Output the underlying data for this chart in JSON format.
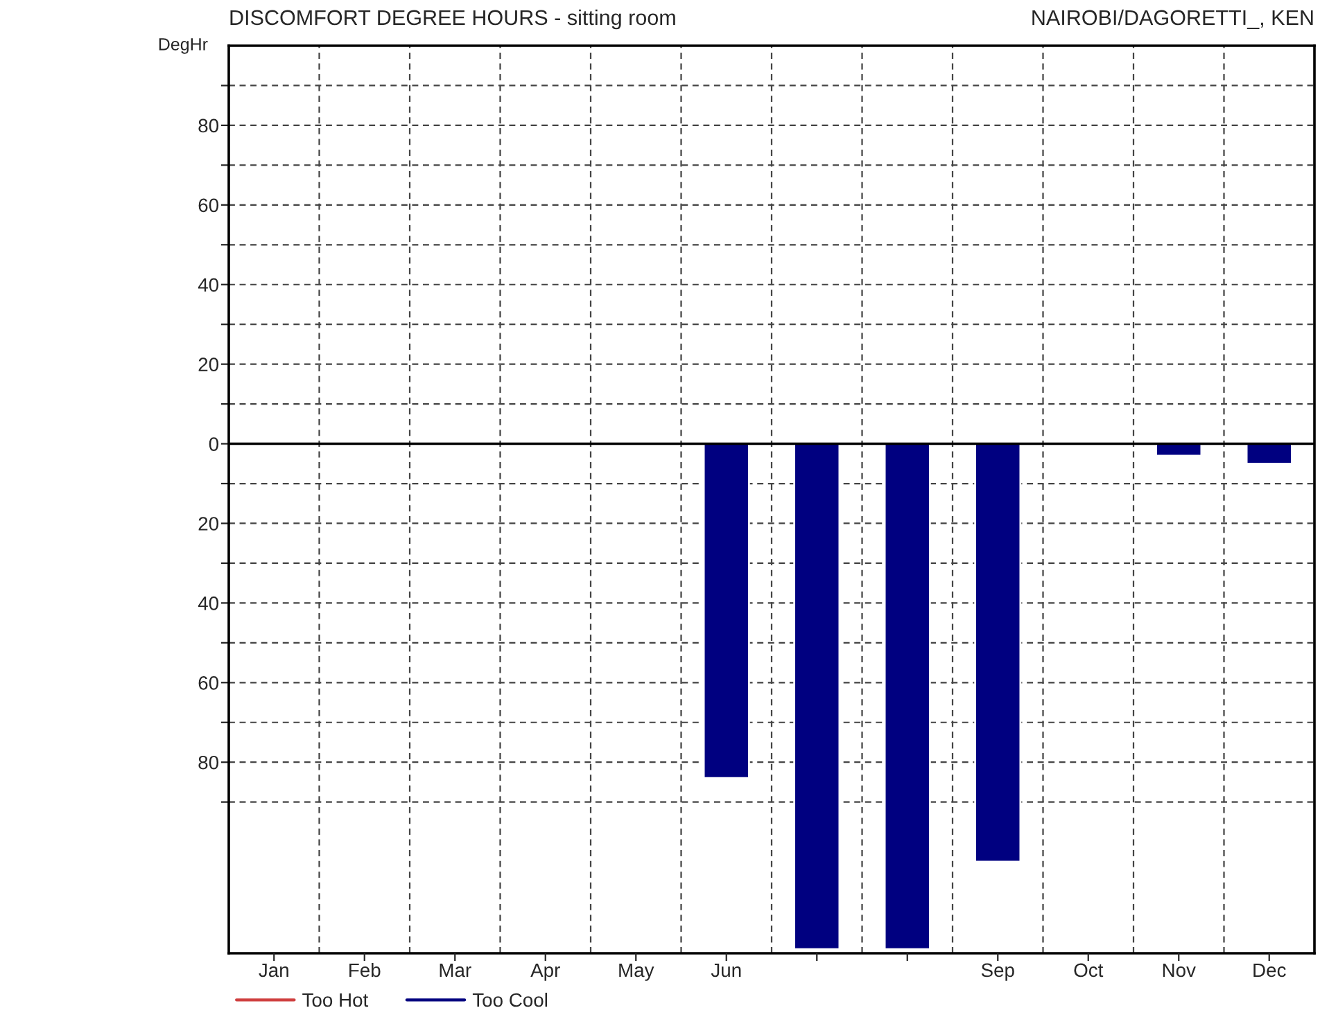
{
  "chart_data": {
    "type": "bar",
    "title": "DISCOMFORT DEGREE HOURS - sitting room",
    "subtitle": "NAIROBI/DAGORETTI_, KEN",
    "ylabel": "DegHr",
    "categories": [
      "Jan",
      "Feb",
      "Mar",
      "Apr",
      "May",
      "Jun",
      null,
      null,
      "Sep",
      "Oct",
      "Nov",
      "Dec"
    ],
    "series": [
      {
        "name": "Too Hot",
        "color": "#d04040",
        "values": [
          null,
          null,
          null,
          null,
          null,
          null,
          null,
          null,
          null,
          null,
          null,
          null
        ]
      },
      {
        "name": "Too Cool",
        "color": "#000080",
        "values": [
          null,
          null,
          null,
          null,
          null,
          -84,
          -127,
          -127,
          -105,
          null,
          -3,
          -5
        ]
      }
    ],
    "ylim": [
      -128,
      100
    ],
    "yticks": [
      {
        "value": -90,
        "label": null
      },
      {
        "value": -80,
        "label": "80"
      },
      {
        "value": -70,
        "label": null
      },
      {
        "value": -60,
        "label": "60"
      },
      {
        "value": -50,
        "label": null
      },
      {
        "value": -40,
        "label": "40"
      },
      {
        "value": -30,
        "label": null
      },
      {
        "value": -20,
        "label": "20"
      },
      {
        "value": -10,
        "label": null
      },
      0,
      {
        "value": 10,
        "label": null
      },
      20,
      {
        "value": 30,
        "label": null
      },
      40,
      {
        "value": 50,
        "label": null
      },
      60,
      {
        "value": 70,
        "label": null
      },
      80,
      {
        "value": 90,
        "label": null
      }
    ],
    "ref_lines": [
      {
        "axis": "y",
        "value": 0,
        "color": "#000000"
      }
    ],
    "grid": true,
    "legend": "bottom left",
    "line_style": "dashed"
  }
}
